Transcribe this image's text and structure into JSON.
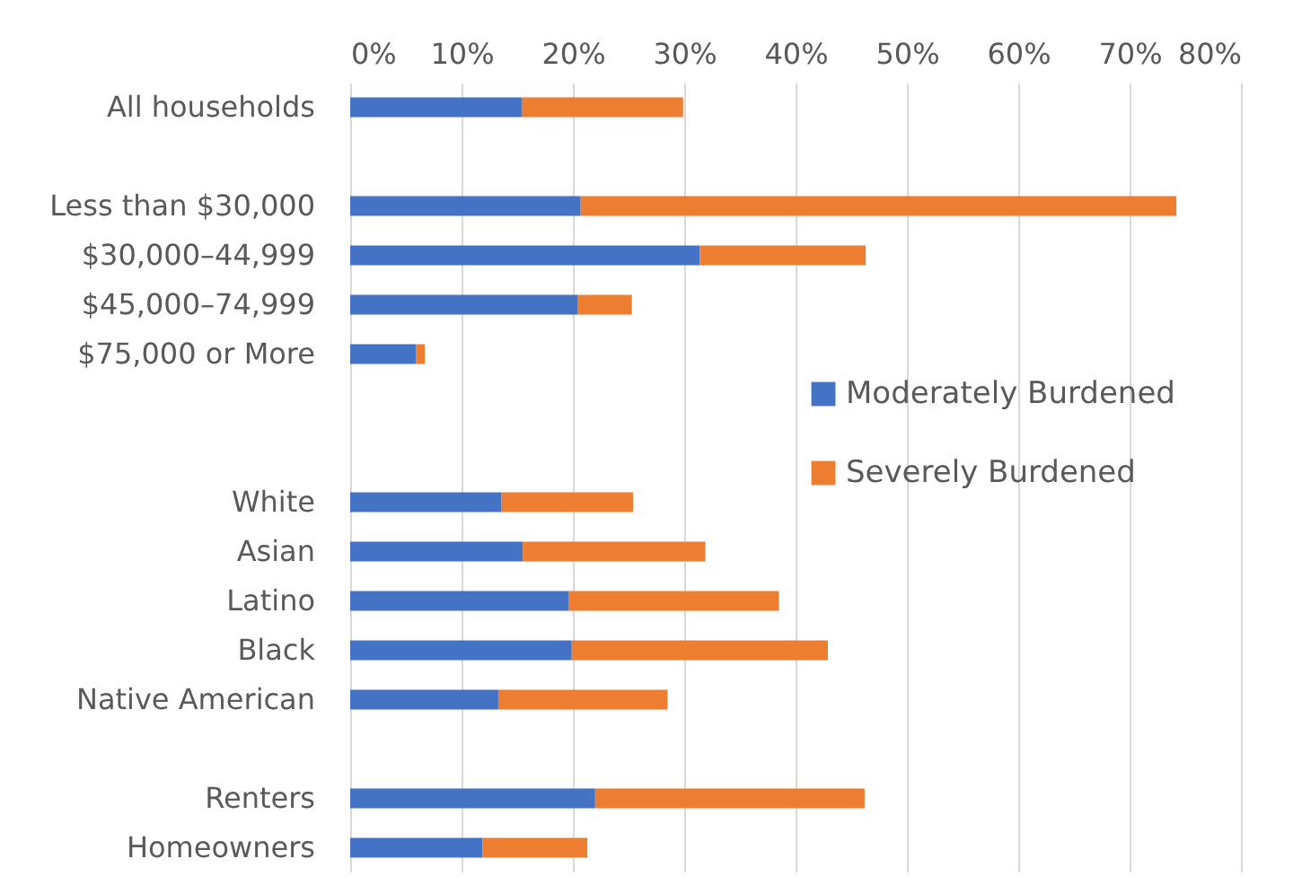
{
  "chart_data": {
    "type": "bar",
    "orientation": "horizontal",
    "stacked": true,
    "categories": [
      "All households",
      null,
      "Less than $30,000",
      "$30,000–44,999",
      "$45,000–74,999",
      "$75,000 or More",
      null,
      null,
      "White",
      "Asian",
      "Latino",
      "Black",
      "Native American",
      null,
      "Renters",
      "Homeowners"
    ],
    "series": [
      {
        "name": "Moderately Burdened",
        "color": "#4472c4",
        "values": [
          15.4,
          null,
          20.7,
          31.4,
          20.4,
          5.9,
          null,
          null,
          13.6,
          15.5,
          19.6,
          19.9,
          13.3,
          null,
          22.0,
          11.9
        ]
      },
      {
        "name": "Severely Burdened",
        "color": "#ed7d31",
        "values": [
          14.5,
          null,
          53.5,
          14.9,
          4.9,
          0.8,
          null,
          null,
          11.8,
          16.4,
          18.9,
          23.0,
          15.2,
          null,
          24.2,
          9.4
        ]
      }
    ],
    "xlim": [
      0,
      80
    ],
    "xticks": [
      {
        "value": 0,
        "label": "0%"
      },
      {
        "value": 10,
        "label": "10%"
      },
      {
        "value": 20,
        "label": "20%"
      },
      {
        "value": 30,
        "label": "30%"
      },
      {
        "value": 40,
        "label": "40%"
      },
      {
        "value": 50,
        "label": "50%"
      },
      {
        "value": 60,
        "label": "60%"
      },
      {
        "value": 70,
        "label": "70%"
      },
      {
        "value": 80,
        "label": "80%"
      }
    ],
    "grid": "x",
    "legend": "right"
  }
}
